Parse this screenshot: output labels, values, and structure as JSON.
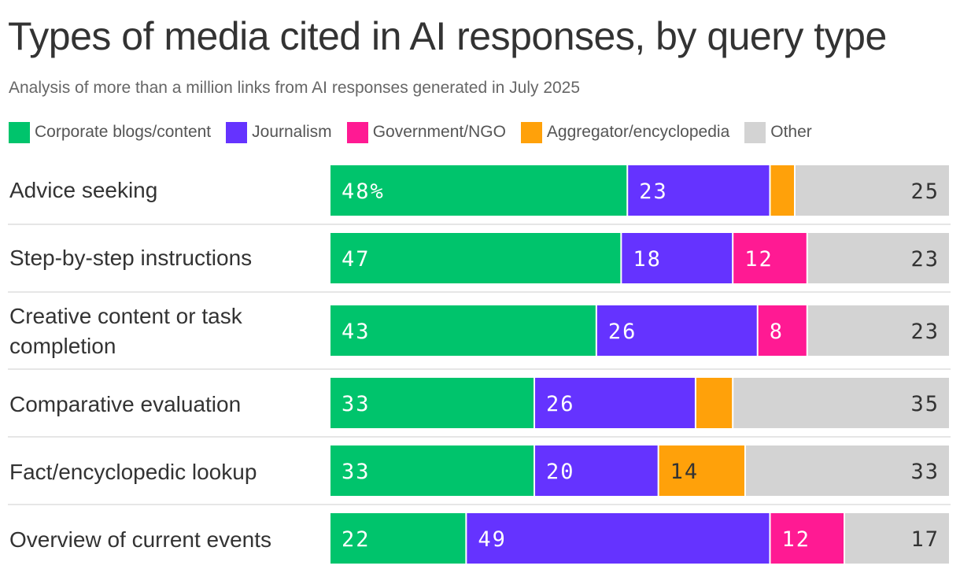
{
  "chart_data": {
    "type": "bar",
    "orientation": "horizontal",
    "stacked": true,
    "title": "Types of media cited in AI responses, by query type",
    "subtitle": "Analysis of more than a million links from AI responses generated in July 2025",
    "unit": "%",
    "xlim": [
      0,
      100
    ],
    "legend_position": "top-left",
    "grid": false,
    "categories": [
      "Advice seeking",
      "Step-by-step instructions",
      "Creative content or task completion",
      "Comparative evaluation",
      "Fact/encyclopedic lookup",
      "Overview of current events"
    ],
    "series": [
      {
        "name": "Corporate blogs/content",
        "color": "#00c46c",
        "label_color": "#ffffff",
        "values": [
          48,
          47,
          43,
          33,
          33,
          22
        ],
        "labels": [
          "48%",
          "47",
          "43",
          "33",
          "33",
          "22"
        ]
      },
      {
        "name": "Journalism",
        "color": "#6533ff",
        "label_color": "#ffffff",
        "values": [
          23,
          18,
          26,
          26,
          20,
          49
        ],
        "labels": [
          "23",
          "18",
          "26",
          "26",
          "20",
          "49"
        ]
      },
      {
        "name": "Government/NGO",
        "color": "#ff1a93",
        "label_color": "#ffffff",
        "values": [
          0,
          12,
          8,
          0,
          0,
          12
        ],
        "labels": [
          "",
          "12",
          "8",
          "",
          "",
          "12"
        ]
      },
      {
        "name": "Aggregator/encyclopedia",
        "color": "#ffa10a",
        "label_color": "#333333",
        "values": [
          4,
          0,
          0,
          6,
          14,
          0
        ],
        "labels": [
          "",
          "",
          "",
          "",
          "14",
          ""
        ]
      },
      {
        "name": "Other",
        "color": "#d3d3d3",
        "label_color": "#333333",
        "values": [
          25,
          23,
          23,
          35,
          33,
          17
        ],
        "labels": [
          "25",
          "23",
          "23",
          "35",
          "33",
          "17"
        ]
      }
    ]
  }
}
